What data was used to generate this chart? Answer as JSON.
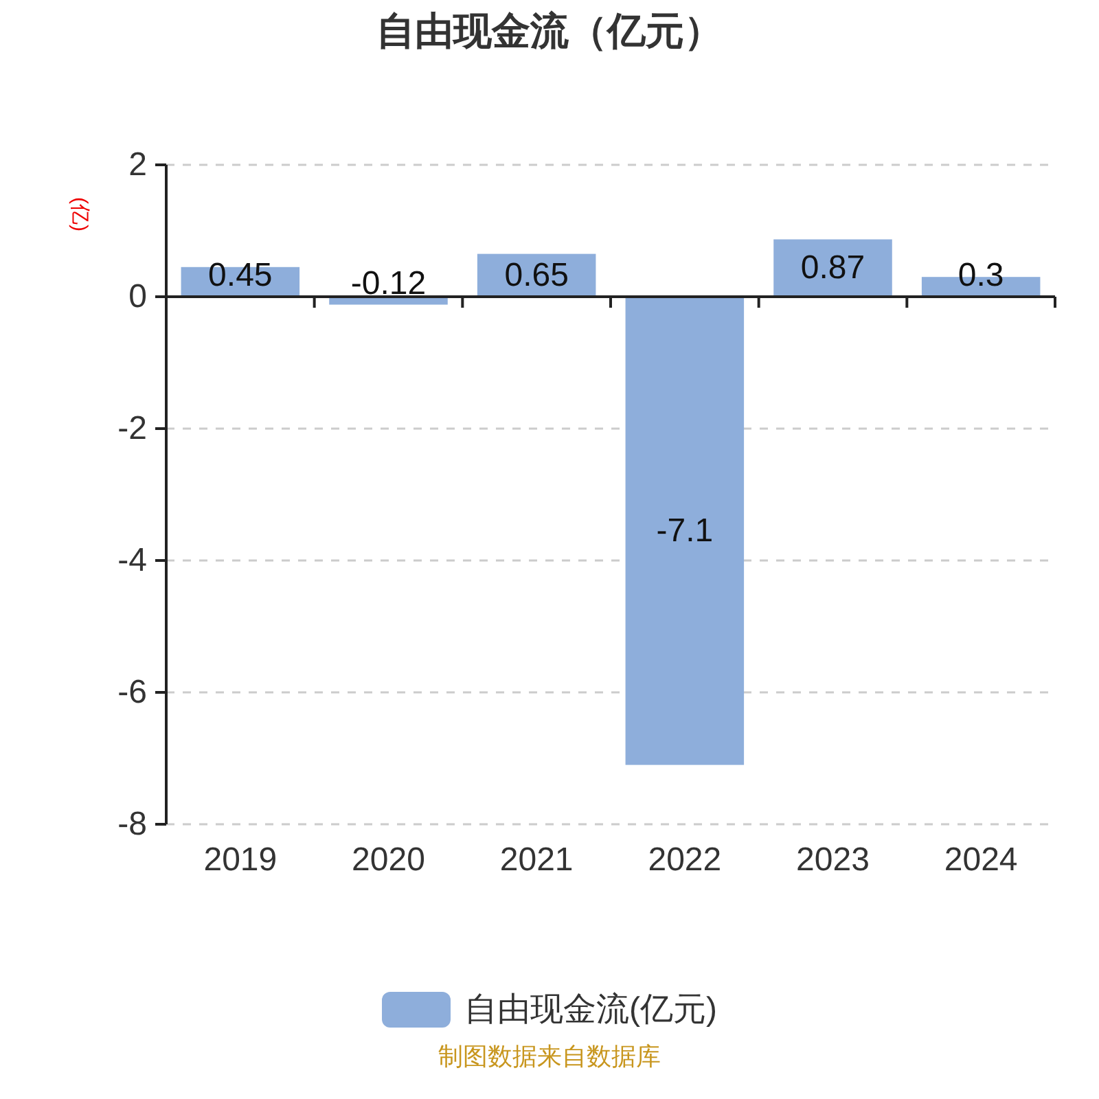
{
  "chart_data": {
    "type": "bar",
    "title": "自由现金流（亿元）",
    "ylabel": "(亿)",
    "categories": [
      "2019",
      "2020",
      "2021",
      "2022",
      "2023",
      "2024"
    ],
    "series": [
      {
        "name": "自由现金流(亿元)",
        "color": "#8eaedb",
        "values": [
          0.45,
          -0.12,
          0.65,
          -7.1,
          0.87,
          0.3
        ]
      }
    ],
    "ylim": [
      -8,
      2
    ],
    "yticks": [
      -8,
      -6,
      -4,
      -2,
      0,
      2
    ],
    "grid": "y",
    "legend": "bottom",
    "data_labels": true,
    "annotations": [
      "制图数据来自数据库"
    ]
  }
}
